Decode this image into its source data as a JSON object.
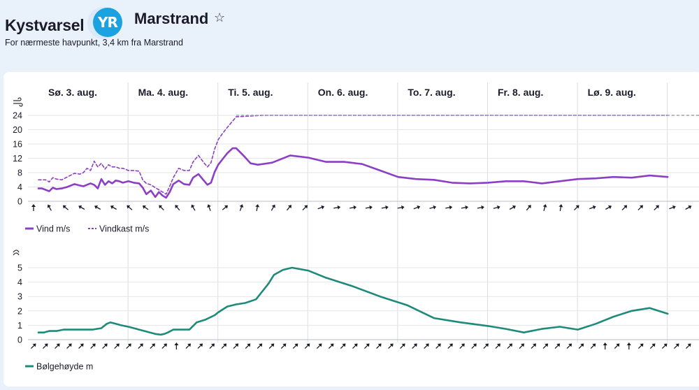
{
  "header": {
    "brand": "Kystvarsel",
    "logo": "YR",
    "location": "Marstrand",
    "star_icon": "☆",
    "subtitle": "For nærmeste havpunkt, 3,4 km fra Marstrand"
  },
  "days": [
    "Sø. 3. aug.",
    "Ma. 4. aug.",
    "Ti. 5. aug.",
    "On. 6. aug.",
    "To. 7. aug.",
    "Fr. 8. aug.",
    "Lø. 9. aug."
  ],
  "chart_data": [
    {
      "type": "line",
      "ylabel_icon": "wind-icon",
      "ylim": [
        0,
        24
      ],
      "yticks": [
        "0",
        "4",
        "8",
        "12",
        "16",
        "20",
        "24"
      ],
      "grid": true,
      "legend_position": "bottom-left",
      "x_unit": "day",
      "x_range": [
        -0.1,
        7.05
      ],
      "series": [
        {
          "name": "Vind m/s",
          "color": "#8c3fc4",
          "style": "solid",
          "x": [
            0.0,
            0.04,
            0.08,
            0.12,
            0.16,
            0.2,
            0.26,
            0.32,
            0.4,
            0.46,
            0.5,
            0.54,
            0.58,
            0.62,
            0.66,
            0.7,
            0.74,
            0.78,
            0.82,
            0.86,
            0.9,
            0.94,
            1.0,
            1.06,
            1.12,
            1.16,
            1.2,
            1.25,
            1.3,
            1.34,
            1.38,
            1.42,
            1.46,
            1.5,
            1.56,
            1.62,
            1.68,
            1.72,
            1.78,
            1.84,
            1.88,
            1.92,
            1.96,
            2.0,
            2.05,
            2.1,
            2.16,
            2.2,
            2.28,
            2.36,
            2.44,
            2.6,
            2.8,
            3.0,
            3.2,
            3.4,
            3.6,
            3.8,
            4.0,
            4.2,
            4.4,
            4.6,
            4.8,
            5.0,
            5.2,
            5.4,
            5.6,
            5.8,
            6.0,
            6.2,
            6.4,
            6.6,
            6.8,
            7.0
          ],
          "y": [
            3.6,
            3.6,
            3.2,
            2.8,
            3.8,
            3.4,
            3.6,
            4.0,
            4.8,
            4.4,
            4.2,
            4.6,
            5.0,
            4.6,
            3.6,
            6.2,
            4.6,
            5.6,
            5.0,
            5.8,
            5.6,
            5.2,
            5.6,
            5.2,
            5.0,
            3.8,
            2.0,
            3.0,
            1.2,
            2.6,
            1.6,
            1.0,
            2.6,
            4.8,
            5.8,
            4.8,
            4.6,
            6.6,
            7.6,
            5.8,
            4.6,
            5.2,
            8.2,
            10.2,
            11.8,
            13.4,
            14.8,
            14.8,
            12.8,
            10.6,
            10.2,
            10.8,
            12.8,
            12.2,
            11.0,
            11.0,
            10.4,
            8.6,
            6.8,
            6.2,
            6.0,
            5.2,
            5.0,
            5.2,
            5.6,
            5.6,
            5.0,
            5.6,
            6.2,
            6.4,
            6.8,
            6.6,
            7.2,
            6.8
          ]
        },
        {
          "name": "Vindkast m/s",
          "color": "#8c3fc4",
          "style": "dashed",
          "x": [
            0.0,
            0.04,
            0.08,
            0.12,
            0.16,
            0.2,
            0.26,
            0.32,
            0.4,
            0.46,
            0.5,
            0.54,
            0.58,
            0.62,
            0.66,
            0.7,
            0.74,
            0.78,
            0.82,
            0.86,
            0.9,
            0.94,
            1.0,
            1.06,
            1.12,
            1.16,
            1.2,
            1.25,
            1.3,
            1.34,
            1.38,
            1.42,
            1.46,
            1.5,
            1.56,
            1.62,
            1.68,
            1.72,
            1.78,
            1.84,
            1.88,
            1.92,
            1.96,
            2.0,
            2.05,
            2.1,
            2.16,
            2.2,
            2.5,
            3.0,
            3.5,
            4.0,
            4.5,
            5.0,
            5.5,
            6.0,
            6.5,
            7.0
          ],
          "y": [
            6.0,
            6.0,
            6.0,
            5.4,
            6.6,
            6.2,
            6.0,
            6.8,
            7.8,
            7.6,
            8.0,
            9.2,
            8.6,
            11.2,
            9.6,
            10.6,
            9.0,
            10.2,
            9.6,
            9.6,
            9.2,
            9.2,
            8.6,
            8.6,
            8.4,
            6.0,
            5.0,
            4.6,
            3.8,
            3.2,
            2.6,
            2.0,
            4.2,
            6.6,
            9.2,
            8.6,
            8.6,
            11.0,
            12.8,
            10.8,
            9.6,
            10.8,
            14.6,
            17.2,
            19.0,
            20.6,
            22.4,
            23.6,
            24.0,
            24.0,
            24.0,
            24.0,
            24.0,
            24.0,
            24.0,
            24.0,
            24.0,
            24.0
          ]
        }
      ],
      "direction_arrows": [
        0,
        330,
        310,
        300,
        300,
        300,
        310,
        305,
        315,
        320,
        330,
        340,
        50,
        20,
        10,
        30,
        40,
        45,
        70,
        80,
        80,
        80,
        80,
        80,
        70,
        75,
        80,
        80,
        80,
        75,
        60,
        40,
        15,
        10,
        45,
        70,
        60,
        45,
        45,
        45,
        70,
        60
      ]
    },
    {
      "type": "line",
      "ylabel_icon": "wave-icon",
      "ylim": [
        0,
        5.5
      ],
      "yticks": [
        "0",
        "1",
        "2",
        "3",
        "4",
        "5"
      ],
      "grid": true,
      "legend_position": "bottom-left",
      "x_unit": "day",
      "x_range": [
        -0.1,
        7.05
      ],
      "series": [
        {
          "name": "Bølgehøyde m",
          "color": "#1e8a7a",
          "style": "solid",
          "x": [
            0.0,
            0.06,
            0.12,
            0.2,
            0.28,
            0.36,
            0.5,
            0.6,
            0.7,
            0.76,
            0.8,
            0.86,
            0.92,
            1.0,
            1.06,
            1.12,
            1.18,
            1.24,
            1.3,
            1.36,
            1.4,
            1.44,
            1.5,
            1.6,
            1.68,
            1.76,
            1.86,
            1.96,
            2.0,
            2.1,
            2.2,
            2.3,
            2.42,
            2.56,
            2.62,
            2.72,
            2.82,
            3.0,
            3.2,
            3.5,
            3.8,
            4.1,
            4.4,
            4.7,
            5.0,
            5.2,
            5.4,
            5.6,
            5.8,
            6.0,
            6.2,
            6.4,
            6.6,
            6.8,
            7.0
          ],
          "y": [
            0.5,
            0.5,
            0.6,
            0.6,
            0.7,
            0.7,
            0.7,
            0.7,
            0.8,
            1.1,
            1.2,
            1.1,
            1.0,
            0.9,
            0.8,
            0.7,
            0.6,
            0.5,
            0.4,
            0.35,
            0.4,
            0.5,
            0.7,
            0.7,
            0.7,
            1.2,
            1.4,
            1.7,
            1.9,
            2.3,
            2.45,
            2.55,
            2.8,
            3.9,
            4.5,
            4.85,
            5.0,
            4.8,
            4.3,
            3.7,
            3.0,
            2.4,
            1.5,
            1.2,
            0.95,
            0.75,
            0.5,
            0.75,
            0.9,
            0.7,
            1.1,
            1.6,
            2.0,
            2.2,
            1.8
          ]
        }
      ],
      "direction_arrows": [
        45,
        45,
        45,
        45,
        45,
        45,
        45,
        45,
        45,
        45,
        45,
        45,
        0,
        45,
        45,
        45,
        45,
        45,
        45,
        45,
        45,
        45,
        45,
        45,
        45,
        45,
        45,
        45,
        45,
        45,
        45,
        45,
        45,
        45,
        45,
        45,
        45,
        45,
        45,
        45,
        45,
        45,
        45,
        45,
        45,
        45,
        45,
        45,
        0,
        45,
        0,
        45,
        45,
        45,
        45,
        45
      ]
    }
  ]
}
